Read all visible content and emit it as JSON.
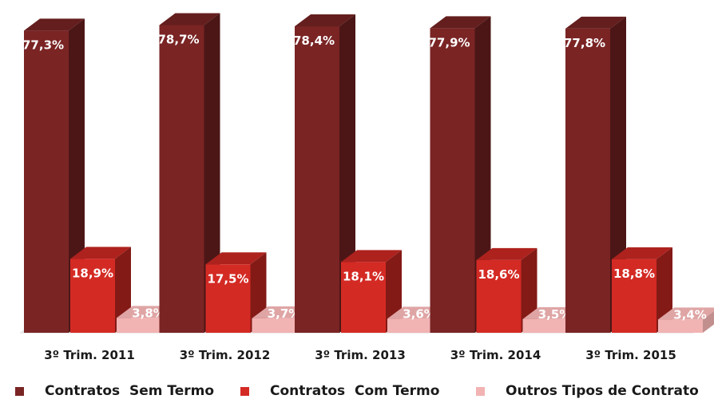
{
  "chart_data": {
    "type": "bar",
    "style": "3d-clustered",
    "categories": [
      "3º Trim. 2011",
      "3º Trim. 2012",
      "3º Trim. 2013",
      "3º Trim. 2014",
      "3º Trim. 2015"
    ],
    "series": [
      {
        "name": "Contratos  Sem Termo",
        "values": [
          77.3,
          78.7,
          78.4,
          77.9,
          77.8
        ],
        "labels": [
          "77,3%",
          "78,7%",
          "78,4%",
          "77,9%",
          "77,8%"
        ],
        "color": "#7a2424"
      },
      {
        "name": "Contratos  Com Termo",
        "values": [
          18.9,
          17.5,
          18.1,
          18.6,
          18.8
        ],
        "labels": [
          "18,9%",
          "17,5%",
          "18,1%",
          "18,6%",
          "18,8%"
        ],
        "color": "#d42a24"
      },
      {
        "name": "Outros Tipos de Contrato",
        "values": [
          3.8,
          3.7,
          3.6,
          3.5,
          3.4
        ],
        "labels": [
          "3,8%",
          "3,7%",
          "3,6%",
          "3,5%",
          "3,4%"
        ],
        "color": "#f2b3b3"
      }
    ],
    "ylim": [
      0,
      79
    ],
    "grid": false,
    "legend_position": "bottom",
    "data_labels": true
  }
}
